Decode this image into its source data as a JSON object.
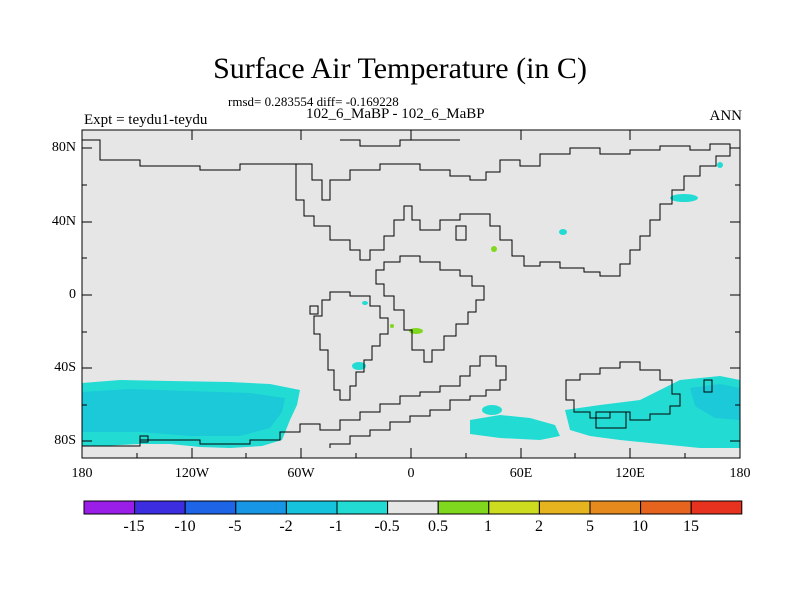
{
  "header": {
    "title": "Surface Air Temperature (in C)",
    "stats": "rmsd= 0.283554 diff= -0.169228",
    "subtitle": "102_6_MaBP - 102_6_MaBP",
    "left_label": "Expt = teydu1-teydu",
    "right_label": "ANN"
  },
  "axes": {
    "lat_ticks": [
      "80N",
      "40N",
      "0",
      "40S",
      "80S"
    ],
    "lon_ticks": [
      "180",
      "120W",
      "60W",
      "0",
      "60E",
      "120E",
      "180"
    ]
  },
  "colorbar": {
    "labels": [
      "-15",
      "-10",
      "-5",
      "-2",
      "-1",
      "-0.5",
      "0.5",
      "1",
      "2",
      "5",
      "10",
      "15"
    ],
    "colors": [
      "#9a1ee8",
      "#3c2de0",
      "#1e64e6",
      "#1896e6",
      "#15c3dc",
      "#22dcd4",
      "#e6e6e6",
      "#7fd81e",
      "#cddc1e",
      "#e6b41e",
      "#e68a1e",
      "#e6641e",
      "#e6321e"
    ]
  },
  "map": {
    "background_color": "#e6e6e6",
    "anomaly_color": "#22dcd4",
    "warm_color": "#7fd81e"
  }
}
